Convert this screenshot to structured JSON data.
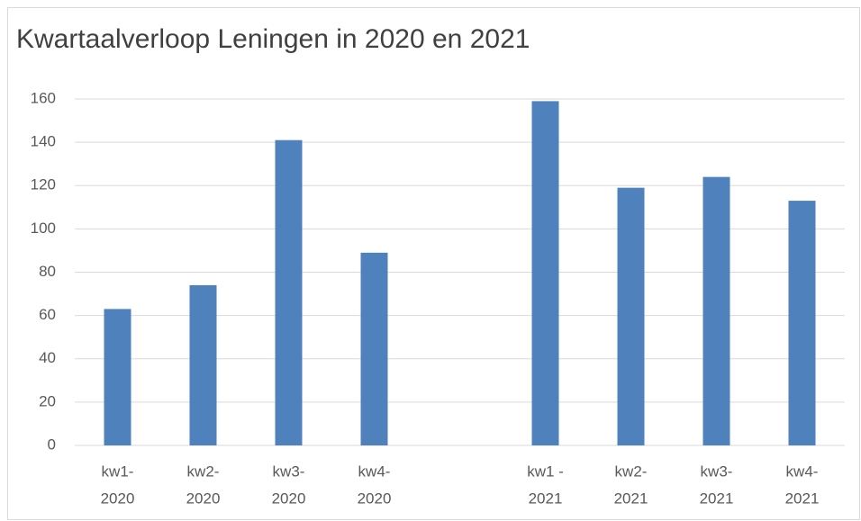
{
  "chart_data": {
    "type": "bar",
    "title": "Kwartaalverloop Leningen in 2020 en 2021",
    "categories": [
      [
        "kw1-",
        "2020"
      ],
      [
        "kw2-",
        "2020"
      ],
      [
        "kw3-",
        "2020"
      ],
      [
        "kw4-",
        "2020"
      ],
      null,
      [
        "kw1 -",
        "2021"
      ],
      [
        "kw2-",
        "2021"
      ],
      [
        "kw3-",
        "2021"
      ],
      [
        "kw4-",
        "2021"
      ]
    ],
    "values": [
      63,
      74,
      141,
      89,
      null,
      159,
      119,
      124,
      113
    ],
    "color": "#4f81bd",
    "ylim": [
      0,
      160
    ],
    "yticks": [
      0,
      20,
      40,
      60,
      80,
      100,
      120,
      140,
      160
    ],
    "grid": true
  }
}
